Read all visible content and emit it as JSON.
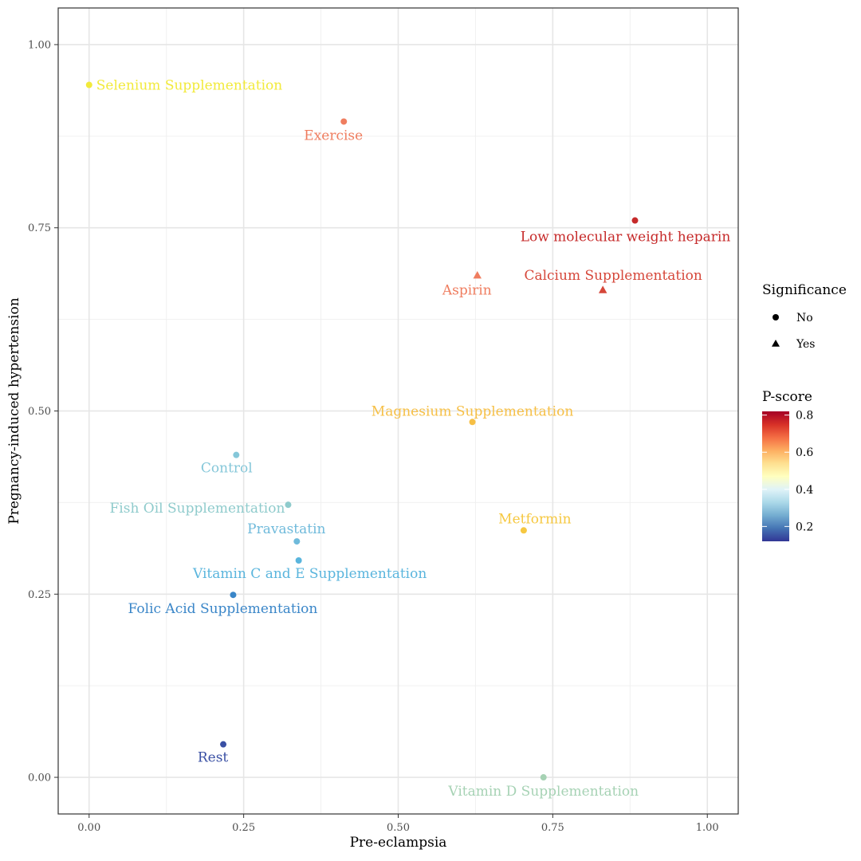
{
  "chart_data": {
    "type": "scatter",
    "xlabel": "Pre-eclampsia",
    "ylabel": "Pregnancy-induced hypertension",
    "xlim": [
      -0.05,
      1.05
    ],
    "ylim": [
      -0.05,
      1.05
    ],
    "x_ticks": [
      0.0,
      0.25,
      0.5,
      0.75,
      1.0
    ],
    "y_ticks": [
      0.0,
      0.25,
      0.5,
      0.75,
      1.0
    ],
    "x_tick_labels": [
      "0.00",
      "0.25",
      "0.50",
      "0.75",
      "1.00"
    ],
    "y_tick_labels": [
      "0.00",
      "0.25",
      "0.50",
      "0.75",
      "1.00"
    ],
    "grid": true,
    "legend_position": "right",
    "legend": {
      "shape_title": "Significance",
      "shape_entries": [
        {
          "label": "No",
          "shape": "circle"
        },
        {
          "label": "Yes",
          "shape": "triangle"
        }
      ],
      "color_title": "P-score",
      "color_ticks": [
        0.2,
        0.4,
        0.6,
        0.8
      ],
      "color_tick_labels": [
        "0.2",
        "0.4",
        "0.6",
        "0.8"
      ],
      "color_range": [
        0.12,
        0.82
      ],
      "color_scale": [
        "#313695",
        "#4575b4",
        "#74add1",
        "#abd9e9",
        "#e0f3f8",
        "#ffffbf",
        "#fee090",
        "#fdae61",
        "#f46d43",
        "#d73027",
        "#a50026"
      ]
    },
    "points": [
      {
        "label": "Selenium Supplementation",
        "x": 0.0,
        "y": 0.945,
        "significance": "No",
        "color": "#f2ea3a"
      },
      {
        "label": "Exercise",
        "x": 0.412,
        "y": 0.895,
        "significance": "No",
        "color": "#ef7d5f"
      },
      {
        "label": "Low molecular weight heparin",
        "x": 0.883,
        "y": 0.76,
        "significance": "No",
        "color": "#c62a2a"
      },
      {
        "label": "Aspirin",
        "x": 0.628,
        "y": 0.685,
        "significance": "Yes",
        "color": "#ef7d5f"
      },
      {
        "label": "Calcium Supplementation",
        "x": 0.831,
        "y": 0.665,
        "significance": "Yes",
        "color": "#d6473a"
      },
      {
        "label": "Magnesium Supplementation",
        "x": 0.62,
        "y": 0.485,
        "significance": "No",
        "color": "#f6bf45"
      },
      {
        "label": "Control",
        "x": 0.238,
        "y": 0.44,
        "significance": "No",
        "color": "#85c7d9"
      },
      {
        "label": "Fish Oil Supplementation",
        "x": 0.322,
        "y": 0.372,
        "significance": "No",
        "color": "#8fcbcc"
      },
      {
        "label": "Metformin",
        "x": 0.703,
        "y": 0.337,
        "significance": "No",
        "color": "#f6c841"
      },
      {
        "label": "Pravastatin",
        "x": 0.336,
        "y": 0.322,
        "significance": "No",
        "color": "#6fbadb"
      },
      {
        "label": "Vitamin C and E Supplementation",
        "x": 0.339,
        "y": 0.296,
        "significance": "No",
        "color": "#5ab5dd"
      },
      {
        "label": "Folic Acid Supplementation",
        "x": 0.233,
        "y": 0.249,
        "significance": "No",
        "color": "#3a86c8"
      },
      {
        "label": "Rest",
        "x": 0.217,
        "y": 0.045,
        "significance": "No",
        "color": "#3a50a4"
      },
      {
        "label": "Vitamin D Supplementation",
        "x": 0.735,
        "y": 0.0,
        "significance": "No",
        "color": "#a6d2b4"
      }
    ]
  }
}
